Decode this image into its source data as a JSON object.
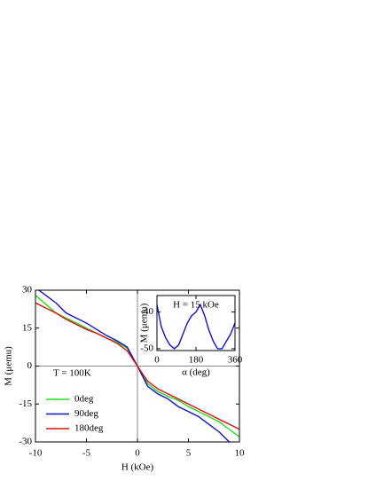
{
  "chart_data": [
    {
      "type": "line",
      "xlabel": "H (kOe)",
      "ylabel": "M (μemu)",
      "annotation": "T = 100K",
      "x": [
        -10,
        -9,
        -8,
        -7,
        -6,
        -5,
        -4,
        -3,
        -2,
        -1,
        0,
        1,
        2,
        3,
        4,
        5,
        6,
        7,
        8,
        9,
        10
      ],
      "series": [
        {
          "name": "0deg",
          "color": "#22dd22",
          "values": [
            28,
            24.5,
            21,
            19,
            17,
            15,
            13,
            11,
            9.5,
            7,
            0,
            -7,
            -10,
            -12,
            -13.5,
            -16,
            -18,
            -20,
            -22,
            -25,
            -28
          ]
        },
        {
          "name": "90deg",
          "color": "#1111cc",
          "values": [
            31,
            28,
            25,
            21,
            19,
            17,
            14.5,
            12,
            10,
            7.5,
            0,
            -8,
            -11,
            -13,
            -16,
            -18,
            -20,
            -23,
            -26,
            -30,
            -32
          ]
        },
        {
          "name": "180deg",
          "color": "#dd1111",
          "values": [
            25,
            23,
            21,
            18.5,
            16.5,
            14.5,
            13,
            11,
            9,
            6,
            0,
            -6,
            -9,
            -11,
            -13,
            -15,
            -17,
            -19,
            -21,
            -23,
            -25
          ]
        }
      ],
      "xlim": [
        -10,
        10
      ],
      "xticks": [
        -10,
        -5,
        0,
        5,
        10
      ],
      "ylim": [
        -30,
        30
      ],
      "yticks": [
        -30,
        -15,
        0,
        15,
        30
      ]
    },
    {
      "type": "line",
      "xlabel": "α (deg)",
      "ylabel": "M (μemu)",
      "annotation": "H = 15 kOe",
      "x": [
        0,
        20,
        40,
        60,
        80,
        100,
        120,
        140,
        160,
        180,
        200,
        220,
        240,
        260,
        280,
        300,
        320,
        340,
        360
      ],
      "series": [
        {
          "color": "#1111cc",
          "values": [
            -38,
            -44,
            -47,
            -49,
            -50,
            -49,
            -46,
            -43,
            -41,
            -40,
            -38,
            -41,
            -45,
            -48,
            -50,
            -50,
            -48,
            -46,
            -43
          ]
        }
      ],
      "xlim": [
        0,
        360
      ],
      "xticks": [
        0,
        180,
        360
      ],
      "ylim": [
        -50.5,
        -35.5
      ],
      "yticks": [
        -50,
        -40
      ]
    }
  ]
}
